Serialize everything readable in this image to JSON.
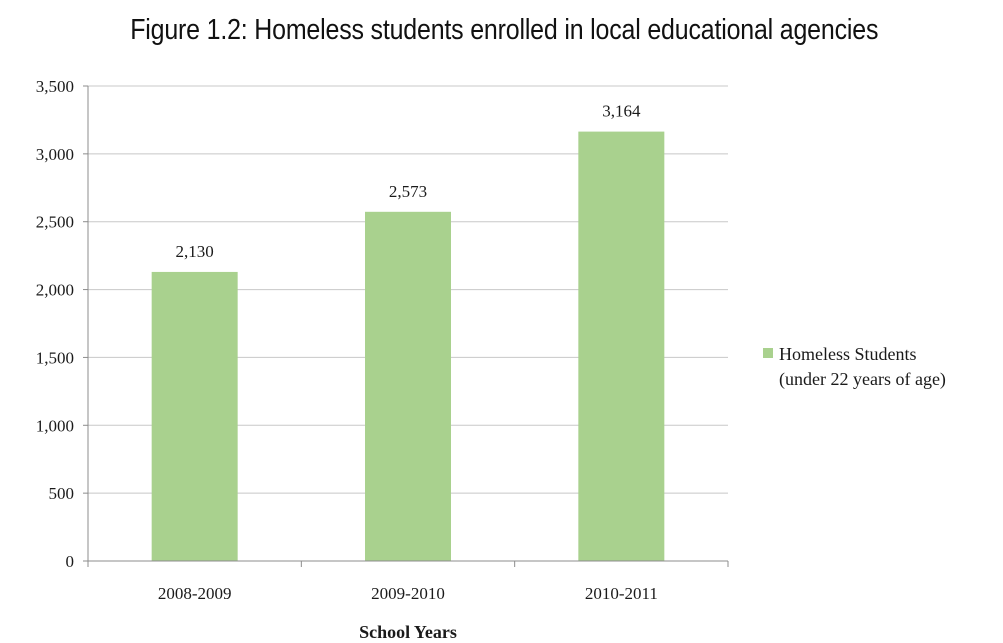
{
  "chart_data": {
    "type": "bar",
    "title": "Figure 1.2: Homeless students enrolled in local educational agencies",
    "categories": [
      "2008-2009",
      "2009-2010",
      "2010-2011"
    ],
    "series": [
      {
        "name": "Homeless Students (under 22 years of age)",
        "legend_lines": [
          "Homeless Students",
          "(under 22 years of age)"
        ],
        "values": [
          2130,
          2573,
          3164
        ],
        "data_labels": [
          "2,130",
          "2,573",
          "3,164"
        ],
        "color": "#a9d18e"
      }
    ],
    "xlabel": "School Years",
    "ylabel": "",
    "ylim": [
      0,
      3500
    ],
    "yticks": [
      0,
      500,
      1000,
      1500,
      2000,
      2500,
      3000,
      3500
    ],
    "ytick_labels": [
      "0",
      "500",
      "1,000",
      "1,500",
      "2,000",
      "2,500",
      "3,000",
      "3,500"
    ],
    "grid": true,
    "legend_position": "right"
  }
}
